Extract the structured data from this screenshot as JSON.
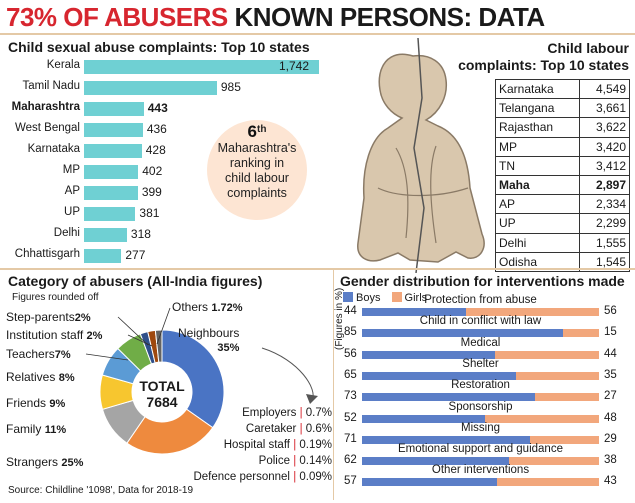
{
  "headline": {
    "part1": "73% OF ABUSERS",
    "part2": "KNOWN PERSONS: DATA"
  },
  "colors": {
    "accent_red": "#d7262f",
    "bar_teal": "#6fd0d3",
    "boys": "#5b7ec7",
    "girls": "#f2a77c",
    "callout_bg": "#fde5d3"
  },
  "abuse": {
    "title": "Child sexual abuse complaints: Top 10 states",
    "states": [
      "Kerala",
      "Tamil Nadu",
      "Maharashtra",
      "West Bengal",
      "Karnataka",
      "MP",
      "AP",
      "UP",
      "Delhi",
      "Chhattisgarh"
    ],
    "value_labels": [
      "1,742",
      "985",
      "443",
      "436",
      "428",
      "402",
      "399",
      "381",
      "318",
      "277"
    ]
  },
  "callout": {
    "rank": "6",
    "suffix": "th",
    "line1": "Maharashtra's",
    "line2": "ranking in",
    "line3": "child labour",
    "line4": "complaints"
  },
  "labour": {
    "title_line1": "Child labour",
    "title_line2": "complaints: Top 10 states",
    "rows": [
      {
        "state": "Karnataka",
        "value": "4,549"
      },
      {
        "state": "Telangana",
        "value": "3,661"
      },
      {
        "state": "Rajasthan",
        "value": "3,622"
      },
      {
        "state": "MP",
        "value": "3,420"
      },
      {
        "state": "TN",
        "value": "3,412"
      },
      {
        "state": "Maha",
        "value": "2,897"
      },
      {
        "state": "AP",
        "value": "2,334"
      },
      {
        "state": "UP",
        "value": "2,299"
      },
      {
        "state": "Delhi",
        "value": "1,555"
      },
      {
        "state": "Odisha",
        "value": "1,545"
      }
    ]
  },
  "category": {
    "title": "Category of abusers (All-India figures)",
    "note": "Figures rounded off",
    "total_label": "TOTAL",
    "total_value": "7684",
    "labels": {
      "neighbours": "Neighbours",
      "neighbours_pct": "35%",
      "strangers": "Strangers",
      "strangers_pct": "25%",
      "family": "Family",
      "family_pct": "11%",
      "friends": "Friends",
      "friends_pct": "9%",
      "relatives": "Relatives",
      "relatives_pct": "8%",
      "teachers": "Teachers",
      "teachers_pct": "7%",
      "institution": "Institution staff",
      "institution_pct": "2%",
      "stepparents": "Step-parents",
      "stepparents_pct": "2%",
      "others": "Others",
      "others_pct": "1.72%"
    },
    "others_breakdown": [
      {
        "label": "Employers",
        "pct": "0.7%"
      },
      {
        "label": "Caretaker",
        "pct": "0.6%"
      },
      {
        "label": "Hospital staff",
        "pct": "0.19%"
      },
      {
        "label": "Police",
        "pct": "0.14%"
      },
      {
        "label": "Defence personnel",
        "pct": "0.09%"
      }
    ],
    "source": "Source: Childline '1098', Data for 2018-19"
  },
  "gender": {
    "title": "Gender distribution for interventions made",
    "legend_boys": "Boys",
    "legend_girls": "Girls",
    "yaxis": "(Figures in %)",
    "rows": [
      {
        "label": "Protection from abuse",
        "boys": "44",
        "girls": "56"
      },
      {
        "label": "Child in conflict with law",
        "boys": "85",
        "girls": "15"
      },
      {
        "label": "Medical",
        "boys": "56",
        "girls": "44"
      },
      {
        "label": "Shelter",
        "boys": "65",
        "girls": "35"
      },
      {
        "label": "Restoration",
        "boys": "73",
        "girls": "27"
      },
      {
        "label": "Sponsorship",
        "boys": "52",
        "girls": "48"
      },
      {
        "label": "Missing",
        "boys": "71",
        "girls": "29"
      },
      {
        "label": "Emotional support and guidance",
        "boys": "62",
        "girls": "38"
      },
      {
        "label": "Other interventions",
        "boys": "57",
        "girls": "43"
      }
    ]
  },
  "chart_data": [
    {
      "type": "bar",
      "title": "Child sexual abuse complaints: Top 10 states",
      "orientation": "horizontal",
      "categories": [
        "Kerala",
        "Tamil Nadu",
        "Maharashtra",
        "West Bengal",
        "Karnataka",
        "MP",
        "AP",
        "UP",
        "Delhi",
        "Chhattisgarh"
      ],
      "values": [
        1742,
        985,
        443,
        436,
        428,
        402,
        399,
        381,
        318,
        277
      ]
    },
    {
      "type": "table",
      "title": "Child labour complaints: Top 10 states",
      "categories": [
        "Karnataka",
        "Telangana",
        "Rajasthan",
        "MP",
        "TN",
        "Maha",
        "AP",
        "UP",
        "Delhi",
        "Odisha"
      ],
      "values": [
        4549,
        3661,
        3622,
        3420,
        3412,
        2897,
        2334,
        2299,
        1555,
        1545
      ]
    },
    {
      "type": "pie",
      "title": "Category of abusers (All-India figures)",
      "categories": [
        "Neighbours",
        "Strangers",
        "Family",
        "Friends",
        "Relatives",
        "Teachers",
        "Institution staff",
        "Step-parents",
        "Others"
      ],
      "values": [
        35,
        25,
        11,
        9,
        8,
        7,
        2,
        2,
        1.72
      ],
      "colors": [
        "#4a74c4",
        "#ee8a3e",
        "#a5a5a5",
        "#f7c62f",
        "#5b9bd5",
        "#70ad47",
        "#2f4f8a",
        "#9e480e",
        "#636363"
      ]
    },
    {
      "type": "bar",
      "stacked": true,
      "orientation": "horizontal",
      "title": "Gender distribution for interventions made",
      "categories": [
        "Protection from abuse",
        "Child in conflict with law",
        "Medical",
        "Shelter",
        "Restoration",
        "Sponsorship",
        "Missing",
        "Emotional support and guidance",
        "Other interventions"
      ],
      "series": [
        {
          "name": "Boys",
          "values": [
            44,
            85,
            56,
            65,
            73,
            52,
            71,
            62,
            57
          ]
        },
        {
          "name": "Girls",
          "values": [
            56,
            15,
            44,
            35,
            27,
            48,
            29,
            38,
            43
          ]
        }
      ],
      "ylabel": "(Figures in %)",
      "xlim": [
        0,
        100
      ]
    }
  ]
}
